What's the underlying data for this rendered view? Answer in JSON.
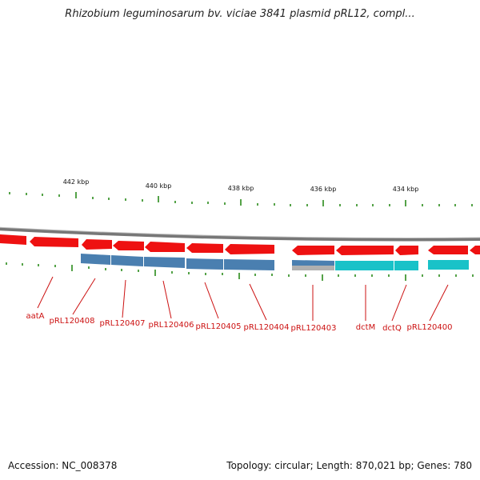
{
  "title": "Rhizobium leguminosarum bv. viciae 3841 plasmid pRL12, compl...",
  "footer": {
    "accession": "Accession: NC_008378",
    "summary": "Topology: circular; Length: 870,021 bp; Genes: 780"
  },
  "scale_labels": [
    "442 kbp",
    "440 kbp",
    "438 kbp",
    "436 kbp",
    "434 kbp"
  ],
  "gene_labels": [
    "aatA",
    "pRL120408",
    "pRL120407",
    "pRL120406",
    "pRL120405",
    "pRL120404",
    "pRL120403",
    "dctM",
    "dctQ",
    "pRL120400"
  ],
  "colors": {
    "gene": "#ee1111",
    "cds_blue": "#4a7fb0",
    "cds_cyan": "#19c2c8",
    "cds_gray": "#b0b0b0",
    "backbone": "#777777",
    "tick": "#2a8a1a",
    "label": "#cc1111"
  }
}
